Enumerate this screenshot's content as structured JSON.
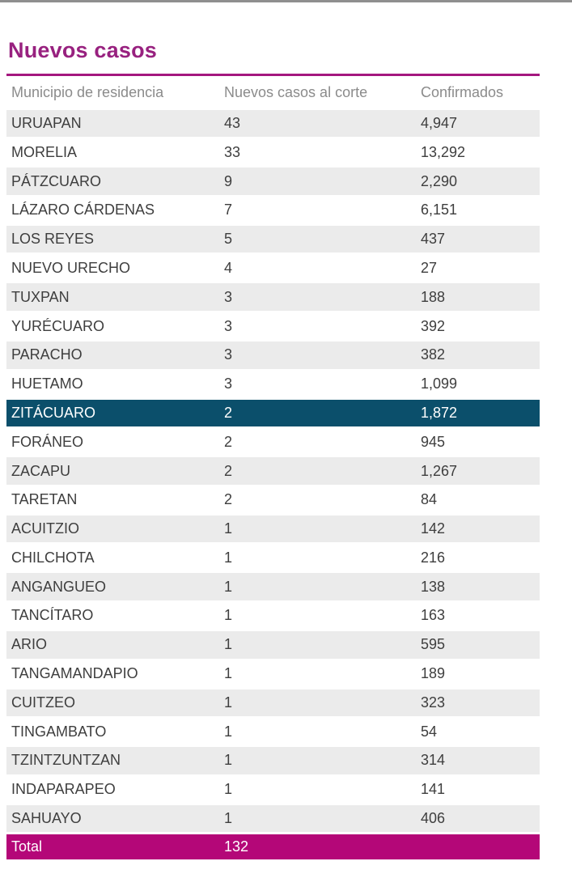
{
  "chart_data": {
    "type": "table",
    "title": "Nuevos casos",
    "columns": [
      "Municipio de residencia",
      "Nuevos casos al corte",
      "Confirmados"
    ],
    "rows": [
      {
        "municipio": "URUAPAN",
        "nuevos_casos": "43",
        "confirmados": "4,947",
        "highlighted": false
      },
      {
        "municipio": "MORELIA",
        "nuevos_casos": "33",
        "confirmados": "13,292",
        "highlighted": false
      },
      {
        "municipio": "PÁTZCUARO",
        "nuevos_casos": "9",
        "confirmados": "2,290",
        "highlighted": false
      },
      {
        "municipio": "LÁZARO CÁRDENAS",
        "nuevos_casos": "7",
        "confirmados": "6,151",
        "highlighted": false
      },
      {
        "municipio": "LOS REYES",
        "nuevos_casos": "5",
        "confirmados": "437",
        "highlighted": false
      },
      {
        "municipio": "NUEVO URECHO",
        "nuevos_casos": "4",
        "confirmados": "27",
        "highlighted": false
      },
      {
        "municipio": "TUXPAN",
        "nuevos_casos": "3",
        "confirmados": "188",
        "highlighted": false
      },
      {
        "municipio": "YURÉCUARO",
        "nuevos_casos": "3",
        "confirmados": "392",
        "highlighted": false
      },
      {
        "municipio": "PARACHO",
        "nuevos_casos": "3",
        "confirmados": "382",
        "highlighted": false
      },
      {
        "municipio": "HUETAMO",
        "nuevos_casos": "3",
        "confirmados": "1,099",
        "highlighted": false
      },
      {
        "municipio": "ZITÁCUARO",
        "nuevos_casos": "2",
        "confirmados": "1,872",
        "highlighted": true
      },
      {
        "municipio": "FORÁNEO",
        "nuevos_casos": "2",
        "confirmados": "945",
        "highlighted": false
      },
      {
        "municipio": "ZACAPU",
        "nuevos_casos": "2",
        "confirmados": "1,267",
        "highlighted": false
      },
      {
        "municipio": "TARETAN",
        "nuevos_casos": "2",
        "confirmados": "84",
        "highlighted": false
      },
      {
        "municipio": "ACUITZIO",
        "nuevos_casos": "1",
        "confirmados": "142",
        "highlighted": false
      },
      {
        "municipio": "CHILCHOTA",
        "nuevos_casos": "1",
        "confirmados": "216",
        "highlighted": false
      },
      {
        "municipio": "ANGANGUEO",
        "nuevos_casos": "1",
        "confirmados": "138",
        "highlighted": false
      },
      {
        "municipio": "TANCÍTARO",
        "nuevos_casos": "1",
        "confirmados": "163",
        "highlighted": false
      },
      {
        "municipio": "ARIO",
        "nuevos_casos": "1",
        "confirmados": "595",
        "highlighted": false
      },
      {
        "municipio": "TANGAMANDAPIO",
        "nuevos_casos": "1",
        "confirmados": "189",
        "highlighted": false
      },
      {
        "municipio": "CUITZEO",
        "nuevos_casos": "1",
        "confirmados": "323",
        "highlighted": false
      },
      {
        "municipio": "TINGAMBATO",
        "nuevos_casos": "1",
        "confirmados": "54",
        "highlighted": false
      },
      {
        "municipio": "TZINTZUNTZAN",
        "nuevos_casos": "1",
        "confirmados": "314",
        "highlighted": false
      },
      {
        "municipio": "INDAPARAPEO",
        "nuevos_casos": "1",
        "confirmados": "141",
        "highlighted": false
      },
      {
        "municipio": "SAHUAYO",
        "nuevos_casos": "1",
        "confirmados": "406",
        "highlighted": false
      }
    ],
    "total": {
      "label": "Total",
      "nuevos_casos": "132",
      "confirmados": ""
    },
    "layout": {
      "grid": "off",
      "alternating_rows": true,
      "highlighted_row": "ZITÁCUARO",
      "total_row_position": "bottom"
    }
  },
  "colors": {
    "accent_title": "#98217f",
    "accent_rule": "#a4177e",
    "total_row_bg": "#b40778",
    "highlight_row_bg": "#0b4f6b",
    "alt_row_bg": "#ebebeb",
    "header_text": "#8b8b8b",
    "row_text": "#3e3e3e",
    "top_border": "#8f8f8f"
  }
}
